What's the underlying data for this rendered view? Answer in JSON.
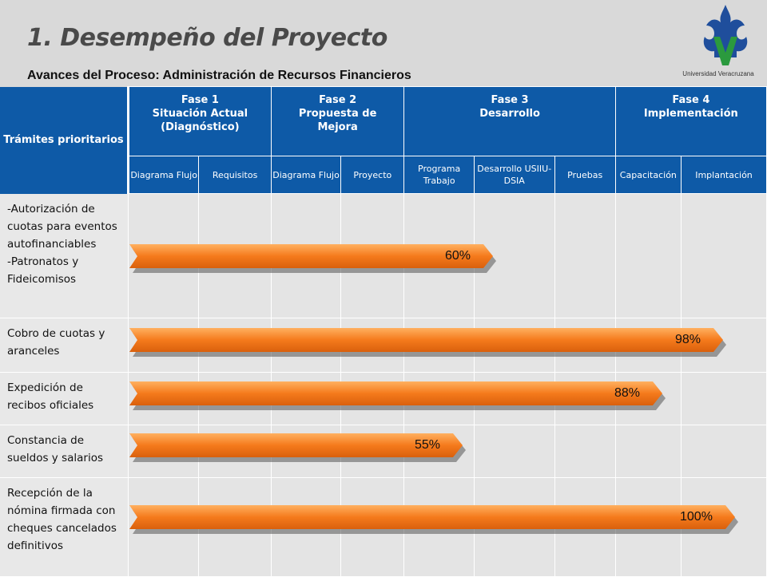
{
  "header": {
    "title": "1. Desempeño del Proyecto",
    "subtitle": "Avances del Proceso: Administración de Recursos Financieros",
    "logo_text": "Universidad Veracruzana"
  },
  "table": {
    "corner_label": "Trámites prioritarios",
    "phases": [
      {
        "label": "Fase 1\nSituación Actual\n(Diagnóstico)"
      },
      {
        "label": "Fase 2\nPropuesta de\nMejora"
      },
      {
        "label": "Fase 3\nDesarrollo"
      },
      {
        "label": "Fase 4\nImplementación"
      }
    ],
    "subphases": [
      "Diagrama Flujo",
      "Requisitos",
      "Diagrama Flujo",
      "Proyecto",
      "Programa Trabajo",
      "Desarrollo USIIU-DSIA",
      "Pruebas",
      "Capacitación",
      "Implantación"
    ],
    "rows": [
      {
        "label": "-Autorización de cuotas para eventos autofinanciables\n-Patronatos y Fideicomisos",
        "progress_label": "60%",
        "progress": 0.6
      },
      {
        "label": "Cobro de cuotas y aranceles",
        "progress_label": "98%",
        "progress": 0.98
      },
      {
        "label": "Expedición de recibos oficiales",
        "progress_label": "88%",
        "progress": 0.88
      },
      {
        "label": "Constancia de sueldos y salarios",
        "progress_label": "55%",
        "progress": 0.55
      },
      {
        "label": "Recepción de la nómina firmada con cheques cancelados definitivos",
        "progress_label": "100%",
        "progress": 1.0
      }
    ]
  },
  "colors": {
    "header_blue": "#0e5aa7",
    "bar_orange": "#f57a1c",
    "bar_light": "#ffb060"
  }
}
